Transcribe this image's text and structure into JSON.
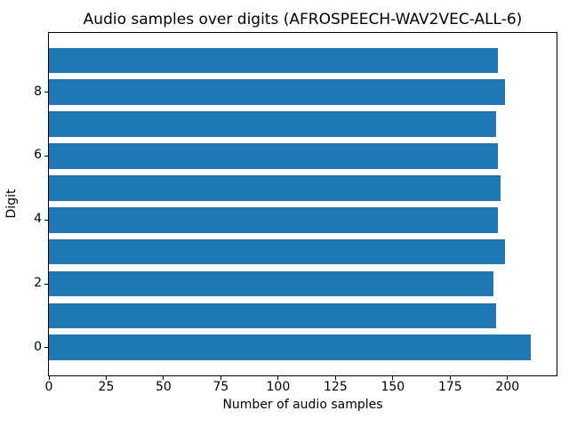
{
  "chart_data": {
    "type": "bar",
    "orientation": "horizontal",
    "title": "Audio samples over digits (AFROSPEECH-WAV2VEC-ALL-6)",
    "xlabel": "Number of audio samples",
    "ylabel": "Digit",
    "categories": [
      0,
      1,
      2,
      3,
      4,
      5,
      6,
      7,
      8,
      9
    ],
    "values": [
      210,
      195,
      194,
      199,
      196,
      197,
      196,
      195,
      199,
      196
    ],
    "xticks": [
      0,
      25,
      50,
      75,
      100,
      125,
      150,
      175,
      200
    ],
    "yticks": [
      0,
      2,
      4,
      6,
      8
    ],
    "xlim": [
      0,
      221.4
    ],
    "ylim": [
      -0.87,
      9.86
    ],
    "bar_height_fraction": 0.8,
    "bar_color": "#1f77b4",
    "axis_color": "#000000",
    "background_color": "#ffffff",
    "grid": false,
    "legend": "none"
  }
}
